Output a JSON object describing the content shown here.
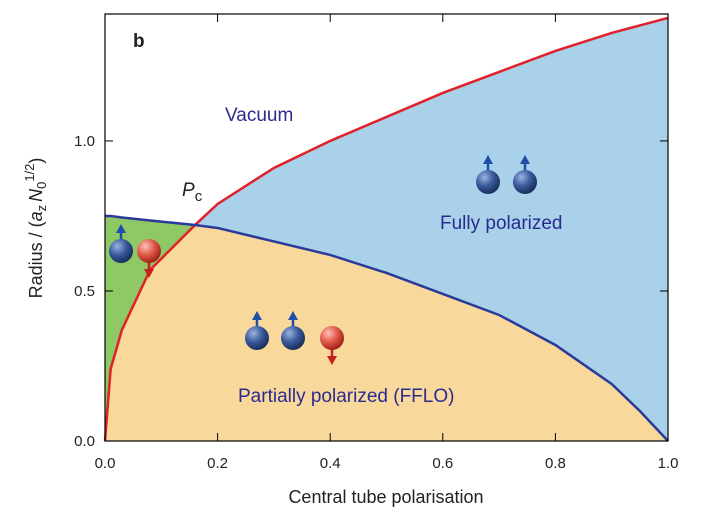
{
  "chart_data": {
    "type": "phase-diagram",
    "panel_label": "b",
    "x_label": "Central tube polarisation",
    "y_label": {
      "prefix": "Radius / (",
      "a": "a",
      "a_sub": "z",
      "n": "N",
      "n_sub": "0",
      "n_sup": "1/2",
      "suffix": ")"
    },
    "xlim": [
      0,
      1
    ],
    "ylim": [
      0,
      1.423
    ],
    "xticks": [
      {
        "value": 0,
        "label": "0.0"
      },
      0.2,
      0.4,
      0.6,
      0.8,
      {
        "value": 1,
        "label": "1.0"
      }
    ],
    "yticks": [
      {
        "value": 0,
        "label": "0.0"
      },
      0.5,
      {
        "value": 1,
        "label": "1.0"
      }
    ],
    "x": [
      0,
      0.01,
      0.03,
      0.08,
      0.16,
      0.2,
      0.3,
      0.4,
      0.5,
      0.6,
      0.7,
      0.8,
      0.9,
      0.95,
      1.0
    ],
    "series": [
      {
        "color": "#e0202a",
        "values": [
          0,
          0.24,
          0.37,
          0.57,
          0.72,
          0.79,
          0.91,
          1.0,
          1.08,
          1.16,
          1.23,
          1.3,
          1.36,
          1.385,
          1.41
        ]
      },
      {
        "color": "#2a3a9a",
        "values": [
          0.75,
          0.75,
          0.745,
          0.735,
          0.72,
          0.71,
          0.665,
          0.62,
          0.56,
          0.49,
          0.42,
          0.32,
          0.19,
          0.1,
          0
        ]
      }
    ],
    "region_colors": {
      "partial_low": "#8fc965",
      "partial": "#f8d99b",
      "full": "#a9d1e9"
    },
    "critical_point": {
      "p": "P",
      "sub": "c"
    },
    "annotations": [
      "Vacuum",
      "Fully polarized",
      "Partially polarized (FFLO)"
    ]
  }
}
